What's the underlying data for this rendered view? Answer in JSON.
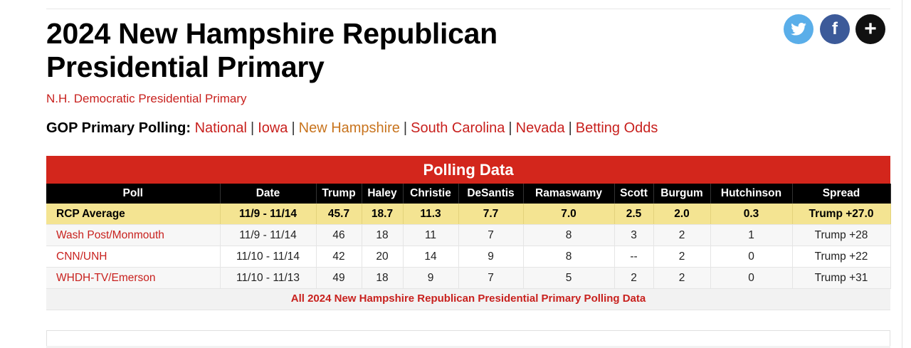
{
  "page": {
    "title": "2024 New Hampshire Republican Presidential Primary",
    "sublink": "N.H. Democratic Presidential Primary"
  },
  "social": {
    "twitter_icon": "twitter-icon",
    "facebook_icon": "facebook-icon",
    "facebook_glyph": "f",
    "more_icon": "plus-icon",
    "more_glyph": "+"
  },
  "gop_nav": {
    "label": "GOP Primary Polling:",
    "links": [
      "National",
      "Iowa",
      "New Hampshire",
      "South Carolina",
      "Nevada",
      "Betting Odds"
    ],
    "current": "New Hampshire",
    "separator": "|"
  },
  "polling": {
    "header": "Polling Data",
    "columns": [
      "Poll",
      "Date",
      "Trump",
      "Haley",
      "Christie",
      "DeSantis",
      "Ramaswamy",
      "Scott",
      "Burgum",
      "Hutchinson",
      "Spread"
    ],
    "average": {
      "poll": "RCP Average",
      "date": "11/9 - 11/14",
      "values": [
        "45.7",
        "18.7",
        "11.3",
        "7.7",
        "7.0",
        "2.5",
        "2.0",
        "0.3"
      ],
      "spread": "Trump +27.0"
    },
    "rows": [
      {
        "poll": "Wash Post/Monmouth",
        "date": "11/9 - 11/14",
        "values": [
          "46",
          "18",
          "11",
          "7",
          "8",
          "3",
          "2",
          "1"
        ],
        "spread": "Trump +28"
      },
      {
        "poll": "CNN/UNH",
        "date": "11/10 - 11/14",
        "values": [
          "42",
          "20",
          "14",
          "9",
          "8",
          "--",
          "2",
          "0"
        ],
        "spread": "Trump +22"
      },
      {
        "poll": "WHDH-TV/Emerson",
        "date": "11/10 - 11/13",
        "values": [
          "49",
          "18",
          "9",
          "7",
          "5",
          "2",
          "2",
          "0"
        ],
        "spread": "Trump +31"
      }
    ],
    "footer_link": "All 2024 New Hampshire Republican Presidential Primary Polling Data"
  },
  "colors": {
    "accent_red": "#d3261c",
    "link_red": "#c8211e",
    "current_orange": "#c8741e",
    "rcp_highlight": "#f4e492"
  }
}
